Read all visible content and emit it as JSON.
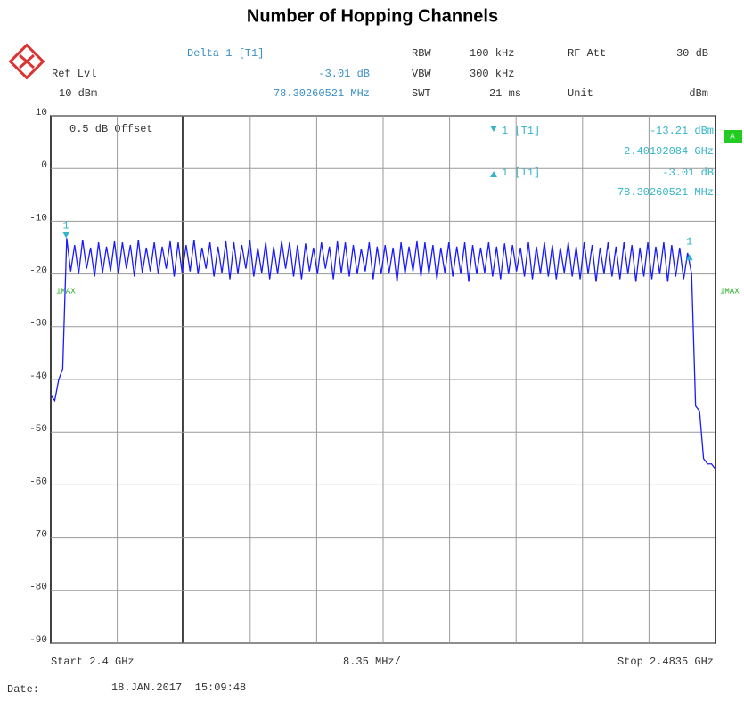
{
  "chart_data": {
    "type": "line",
    "title": "Number of Hopping Channels",
    "xlim": [
      2.4,
      2.4835
    ],
    "ylim": [
      -90,
      10
    ],
    "yticks": [
      10,
      0,
      -10,
      -20,
      -30,
      -40,
      -50,
      -60,
      -70,
      -80,
      -90
    ],
    "grid": true,
    "series": [
      {
        "color": "#1a1aff",
        "x": [
          2.4,
          2.4005,
          2.401,
          2.4015,
          2.402,
          2.4025,
          2.403,
          2.4035,
          2.404,
          2.4045,
          2.405,
          2.4055,
          2.406,
          2.4065,
          2.407,
          2.4075,
          2.408,
          2.4085,
          2.409,
          2.4095,
          2.41,
          2.4105,
          2.411,
          2.4115,
          2.412,
          2.4125,
          2.413,
          2.4135,
          2.414,
          2.4145,
          2.415,
          2.4155,
          2.416,
          2.4165,
          2.417,
          2.4175,
          2.418,
          2.4185,
          2.419,
          2.4195,
          2.42,
          2.4205,
          2.421,
          2.4215,
          2.422,
          2.4225,
          2.423,
          2.4235,
          2.424,
          2.4245,
          2.425,
          2.4255,
          2.426,
          2.4265,
          2.427,
          2.4275,
          2.428,
          2.4285,
          2.429,
          2.4295,
          2.43,
          2.4305,
          2.431,
          2.4315,
          2.432,
          2.4325,
          2.433,
          2.4335,
          2.434,
          2.4345,
          2.435,
          2.4355,
          2.436,
          2.4365,
          2.437,
          2.4375,
          2.438,
          2.4385,
          2.439,
          2.4395,
          2.44,
          2.4405,
          2.441,
          2.4415,
          2.442,
          2.4425,
          2.443,
          2.4435,
          2.444,
          2.4445,
          2.445,
          2.4455,
          2.446,
          2.4465,
          2.447,
          2.4475,
          2.448,
          2.4485,
          2.449,
          2.4495,
          2.45,
          2.4505,
          2.451,
          2.4515,
          2.452,
          2.4525,
          2.453,
          2.4535,
          2.454,
          2.4545,
          2.455,
          2.4555,
          2.456,
          2.4565,
          2.457,
          2.4575,
          2.458,
          2.4585,
          2.459,
          2.4595,
          2.46,
          2.4605,
          2.461,
          2.4615,
          2.462,
          2.4625,
          2.463,
          2.4635,
          2.464,
          2.4645,
          2.465,
          2.4655,
          2.466,
          2.4665,
          2.467,
          2.4675,
          2.468,
          2.4685,
          2.469,
          2.4695,
          2.47,
          2.4705,
          2.471,
          2.4715,
          2.472,
          2.4725,
          2.473,
          2.4735,
          2.474,
          2.4745,
          2.475,
          2.4755,
          2.476,
          2.4765,
          2.477,
          2.4775,
          2.478,
          2.4785,
          2.479,
          2.4795,
          2.48,
          2.4805,
          2.481,
          2.4815,
          2.482,
          2.4825,
          2.483,
          2.4835
        ],
        "values": [
          -43,
          -44,
          -40,
          -38,
          -13.2,
          -19.5,
          -14.5,
          -20,
          -13.5,
          -19,
          -15,
          -20.5,
          -14,
          -19.8,
          -14.8,
          -19.5,
          -13.8,
          -20,
          -14,
          -19,
          -14.5,
          -20.5,
          -13.5,
          -19.8,
          -15,
          -19.5,
          -14,
          -20,
          -14.8,
          -19,
          -13.8,
          -20.5,
          -14,
          -19.8,
          -14.5,
          -19.5,
          -13.5,
          -20,
          -15,
          -19,
          -14,
          -20.5,
          -14.8,
          -19.8,
          -13.8,
          -21,
          -14,
          -20,
          -14.5,
          -19,
          -13.5,
          -20.5,
          -15,
          -19.8,
          -14,
          -21,
          -14.8,
          -20,
          -13.8,
          -19,
          -14,
          -20.5,
          -14.5,
          -21,
          -14.2,
          -19.5,
          -15,
          -20,
          -14,
          -19,
          -14.8,
          -21,
          -13.8,
          -19.8,
          -14,
          -20.5,
          -14.5,
          -20,
          -15.2,
          -19.5,
          -14,
          -21,
          -14.8,
          -20,
          -14.5,
          -19.8,
          -15,
          -21.5,
          -14,
          -20,
          -14.8,
          -19.5,
          -13.8,
          -20.5,
          -14,
          -20,
          -14.5,
          -21,
          -15,
          -19.8,
          -14,
          -20.5,
          -14.8,
          -20,
          -14,
          -21.5,
          -14.5,
          -20,
          -15,
          -19.8,
          -14,
          -20.5,
          -14.8,
          -21,
          -14.2,
          -20,
          -14.5,
          -19.5,
          -15,
          -20.5,
          -14,
          -21,
          -14.8,
          -20,
          -14,
          -20.5,
          -14.5,
          -21,
          -15,
          -19.8,
          -14,
          -20.5,
          -14.8,
          -21,
          -14,
          -20,
          -14.5,
          -21.5,
          -15,
          -20,
          -14,
          -20.5,
          -14.8,
          -21,
          -14,
          -20,
          -14.5,
          -21.5,
          -15,
          -20.5,
          -14,
          -21,
          -14.8,
          -20,
          -14,
          -21.5,
          -14.5,
          -20.5,
          -15,
          -21,
          -16,
          -20,
          -45,
          -46,
          -55,
          -56,
          -56,
          -57
        ]
      }
    ],
    "markers": [
      {
        "label": "1",
        "x": 2.40192084,
        "y": -13.21,
        "dir": "down"
      },
      {
        "label": "1",
        "x": 2.48022344,
        "y": -16.22,
        "dir": "up"
      }
    ],
    "annotations": [
      "Delta 1 [T1]",
      "-3.01 dB",
      "78.30260521 MHz",
      "RBW",
      "100 kHz",
      "RF Att",
      "30 dB",
      "VBW",
      "300 kHz",
      "SWT",
      "21 ms",
      "Unit",
      "dBm",
      "Ref Lvl",
      "10 dBm",
      "0.5 dB Offset",
      "1 [T1]",
      "-13.21 dBm",
      "2.40192084 GHz",
      "1 [T1]",
      "-3.01 dB",
      "78.30260521 MHz",
      "1MAX",
      "1MAX",
      "A",
      "Start 2.4 GHz",
      "8.35 MHz/",
      "Stop 2.4835 GHz",
      "Date:",
      "18.JAN.2017  15:09:48"
    ]
  }
}
